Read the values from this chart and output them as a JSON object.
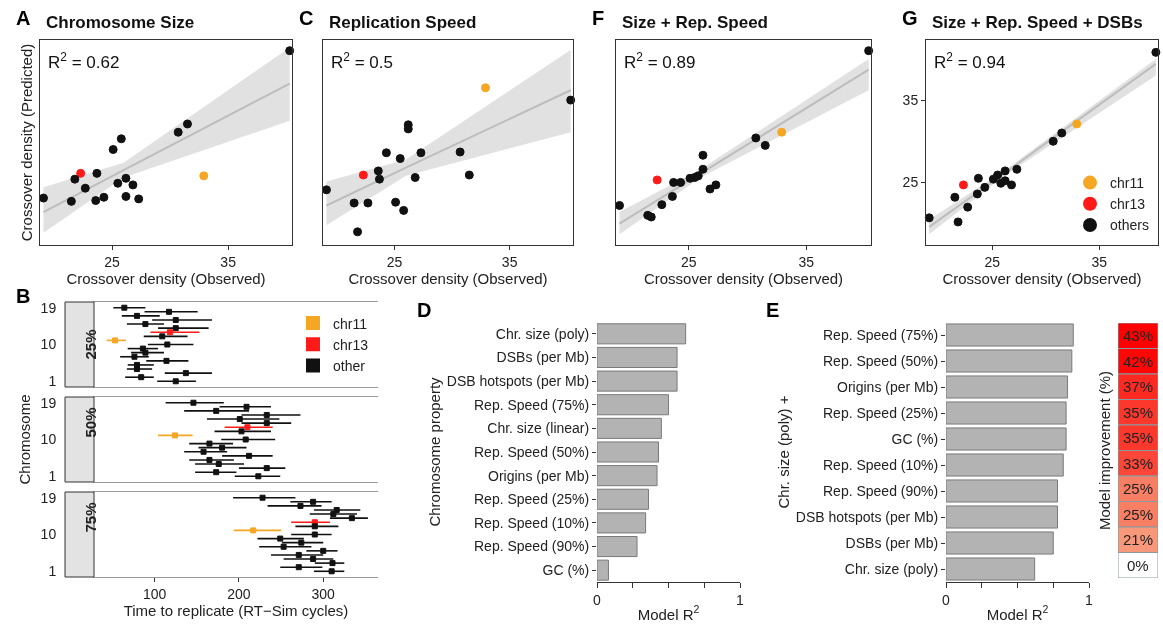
{
  "chart_data": [
    {
      "type": "scatter",
      "title": "Chromosome Size",
      "xlabel": "Crossover density (Observed)",
      "ylabel": "Crossover density (Predicted)",
      "annotations": [
        "A",
        "R$^{2}$ = 0.62"
      ],
      "xlim": [
        18.8,
        40.5
      ],
      "xticks": [
        25,
        35
      ],
      "ylim": [
        17.4,
        42.3
      ],
      "yticks": [
        25,
        35
      ],
      "tick_labels": "x",
      "series": [
        {
          "type": "line",
          "color": "#bdbdbd",
          "x": [
            19.1,
            26,
            40.3
          ],
          "values": [
            21.4,
            26.5,
            37.0
          ],
          "lower": [
            18.9,
            25.6,
            32.5
          ],
          "upper": [
            24.4,
            27.4,
            41.4
          ]
        },
        {
          "color": "#f5a623",
          "marker": "circle",
          "x": [
            32.9
          ],
          "values": [
            25.8
          ]
        },
        {
          "color": "#ff1a1a",
          "marker": "circle",
          "x": [
            22.3
          ],
          "values": [
            26.1
          ]
        },
        {
          "color": "#111111",
          "marker": "circle",
          "x": [
            19.1,
            21.5,
            21.8,
            22.7,
            23.6,
            23.7,
            24.3,
            25.1,
            25.5,
            25.8,
            26.2,
            26.2,
            26.8,
            27.3,
            30.7,
            31.5,
            40.3
          ],
          "values": [
            23.1,
            22.7,
            25.4,
            24.3,
            22.8,
            26.1,
            23.2,
            29.0,
            24.9,
            30.3,
            25.5,
            23.3,
            24.7,
            23.0,
            31.1,
            32.1,
            41.0
          ]
        }
      ]
    },
    {
      "type": "scatter",
      "title": "Replication Speed",
      "xlabel": "Crossover density (Observed)",
      "annotations": [
        "C",
        "R$^{2}$ = 0.5"
      ],
      "xlim": [
        18.8,
        40.5
      ],
      "xticks": [
        25,
        35
      ],
      "ylim": [
        17.4,
        42.3
      ],
      "yticks": [
        25,
        35
      ],
      "tick_labels": "x",
      "series": [
        {
          "type": "line",
          "color": "#bdbdbd",
          "x": [
            19.1,
            26,
            40.3
          ],
          "values": [
            22.2,
            26.8,
            36.2
          ],
          "lower": [
            19.8,
            25.8,
            31.1
          ],
          "upper": [
            25.1,
            27.8,
            41.1
          ]
        },
        {
          "color": "#f5a623",
          "marker": "circle",
          "x": [
            32.9
          ],
          "values": [
            36.5
          ]
        },
        {
          "color": "#ff1a1a",
          "marker": "circle",
          "x": [
            22.3
          ],
          "values": [
            25.9
          ]
        },
        {
          "color": "#111111",
          "marker": "circle",
          "x": [
            19.1,
            21.5,
            21.8,
            22.7,
            23.6,
            23.7,
            24.3,
            25.1,
            25.5,
            25.8,
            26.2,
            26.2,
            26.8,
            27.3,
            30.7,
            31.5,
            40.3
          ],
          "values": [
            24.1,
            22.5,
            19.0,
            22.5,
            26.4,
            25.4,
            28.6,
            22.6,
            27.9,
            21.6,
            32.0,
            31.5,
            25.6,
            28.6,
            28.7,
            25.9,
            35.0
          ]
        }
      ]
    },
    {
      "type": "scatter",
      "title": "Size + Rep. Speed",
      "xlabel": "Crossover density (Observed)",
      "annotations": [
        "F",
        "R$^{2}$ = 0.89"
      ],
      "xlim": [
        18.8,
        40.5
      ],
      "xticks": [
        25,
        35
      ],
      "ylim": [
        17.4,
        42.3
      ],
      "yticks": [
        25,
        35
      ],
      "tick_labels": "x",
      "series": [
        {
          "type": "line",
          "color": "#bdbdbd",
          "x": [
            19.1,
            26,
            40.3
          ],
          "values": [
            20.0,
            26.1,
            38.7
          ],
          "lower": [
            18.7,
            25.6,
            36.2
          ],
          "upper": [
            21.4,
            26.6,
            40.0
          ]
        },
        {
          "color": "#f5a623",
          "marker": "circle",
          "x": [
            32.9
          ],
          "values": [
            31.1
          ]
        },
        {
          "color": "#ff1a1a",
          "marker": "circle",
          "x": [
            22.3
          ],
          "values": [
            25.3
          ]
        },
        {
          "color": "#111111",
          "marker": "circle",
          "x": [
            19.1,
            21.5,
            21.8,
            22.7,
            23.6,
            23.7,
            24.3,
            25.1,
            25.5,
            25.8,
            26.2,
            26.2,
            26.8,
            27.3,
            30.7,
            31.5,
            40.3
          ],
          "values": [
            22.2,
            21.0,
            20.8,
            22.3,
            23.3,
            25.0,
            25.0,
            25.5,
            25.6,
            25.8,
            26.6,
            28.3,
            24.2,
            24.7,
            30.4,
            29.5,
            41.0
          ]
        }
      ]
    },
    {
      "type": "scatter",
      "title": "Size + Rep. Speed + DSBs",
      "xlabel": "Crossover density (Observed)",
      "annotations": [
        "G",
        "R$^{2}$ = 0.94"
      ],
      "xlim": [
        18.8,
        40.5
      ],
      "xticks": [
        25,
        35
      ],
      "ylim": [
        17.4,
        42.3
      ],
      "yticks": [
        25,
        35
      ],
      "legend": "bottom right",
      "series": [
        {
          "type": "line",
          "color": "#bdbdbd",
          "x": [
            19.1,
            26,
            40.3
          ],
          "values": [
            19.6,
            26.0,
            39.4
          ],
          "lower": [
            18.7,
            25.7,
            38.0
          ],
          "upper": [
            20.5,
            26.3,
            40.0
          ]
        },
        {
          "name": "chr11",
          "color": "#f5a623",
          "marker": "circle",
          "x": [
            32.9
          ],
          "values": [
            32.1
          ]
        },
        {
          "name": "chr13",
          "color": "#ff1a1a",
          "marker": "circle",
          "x": [
            22.3
          ],
          "values": [
            24.7
          ]
        },
        {
          "name": "others",
          "color": "#111111",
          "marker": "circle",
          "x": [
            19.1,
            21.5,
            21.8,
            22.7,
            23.6,
            23.7,
            24.3,
            25.1,
            25.5,
            25.8,
            26.2,
            26.2,
            26.8,
            27.3,
            30.7,
            31.5,
            40.3
          ],
          "values": [
            20.7,
            23.2,
            20.2,
            22.0,
            23.6,
            25.5,
            24.4,
            25.4,
            25.9,
            24.9,
            26.4,
            25.2,
            24.7,
            26.6,
            30.0,
            31.0,
            40.8
          ]
        }
      ]
    },
    {
      "type": "scatter",
      "title": "25%",
      "annotations": [
        "B"
      ],
      "xlim": [
        28,
        365
      ],
      "xticks": [
        100,
        200,
        300
      ],
      "ylim": [
        -0.4,
        20.4
      ],
      "yticks": [
        1,
        10,
        19
      ],
      "tick_labels": "y",
      "legend": "right",
      "marker": "square",
      "series": [
        {
          "name": "chr11",
          "color": "#f5a623",
          "x": [
            53
          ],
          "values": [
            11
          ],
          "xerrors": [
            [
              43,
              66
            ]
          ]
        },
        {
          "name": "chr13",
          "color": "#ff1a1a",
          "x": [
            118
          ],
          "values": [
            13
          ],
          "xerrors": [
            [
              95,
              153
            ]
          ]
        },
        {
          "name": "other",
          "color": "#111111",
          "x": [
            64,
            117,
            79,
            125,
            89,
            125,
            109,
            115,
            86,
            89,
            76,
            114,
            79,
            79,
            137,
            84,
            125
          ],
          "values": [
            19,
            18,
            17,
            16,
            15,
            14,
            12,
            10,
            9,
            8,
            7,
            6,
            5,
            4,
            3,
            2,
            1
          ],
          "xerrors": [
            [
              51,
              89
            ],
            [
              88,
              151
            ],
            [
              61,
              106
            ],
            [
              97,
              168
            ],
            [
              67,
              111
            ],
            [
              104,
              164
            ],
            [
              87,
              139
            ],
            [
              92,
              146
            ],
            [
              68,
              104
            ],
            [
              72,
              111
            ],
            [
              59,
              93
            ],
            [
              90,
              140
            ],
            [
              68,
              99
            ],
            [
              67,
              97
            ],
            [
              112,
              168
            ],
            [
              65,
              99
            ],
            [
              103,
              149
            ]
          ]
        }
      ]
    },
    {
      "type": "scatter",
      "title": "50%",
      "ylabel": "Chromosome",
      "xlim": [
        28,
        365
      ],
      "xticks": [
        100,
        200,
        300
      ],
      "ylim": [
        -0.4,
        20.4
      ],
      "yticks": [
        1,
        10,
        19
      ],
      "tick_labels": "y",
      "marker": "square",
      "series": [
        {
          "color": "#f5a623",
          "x": [
            124
          ],
          "values": [
            11
          ],
          "xerrors": [
            [
              104,
              145
            ]
          ]
        },
        {
          "color": "#ff1a1a",
          "x": [
            210
          ],
          "values": [
            13
          ],
          "xerrors": [
            [
              183,
              240
            ]
          ]
        },
        {
          "color": "#111111",
          "x": [
            146,
            209,
            173,
            233,
            201,
            233,
            203,
            208,
            165,
            180,
            158,
            212,
            165,
            176,
            233,
            173,
            223
          ],
          "values": [
            19,
            18,
            17,
            16,
            15,
            14,
            12,
            10,
            9,
            8,
            7,
            6,
            5,
            4,
            3,
            2,
            1
          ],
          "xerrors": [
            [
              113,
              182
            ],
            [
              177,
              238
            ],
            [
              135,
              212
            ],
            [
              203,
              273
            ],
            [
              162,
              248
            ],
            [
              203,
              262
            ],
            [
              171,
              238
            ],
            [
              179,
              243
            ],
            [
              141,
              193
            ],
            [
              152,
              209
            ],
            [
              135,
              186
            ],
            [
              180,
              240
            ],
            [
              141,
              194
            ],
            [
              148,
              206
            ],
            [
              200,
              255
            ],
            [
              148,
              197
            ],
            [
              195,
              249
            ]
          ]
        }
      ]
    },
    {
      "type": "scatter",
      "title": "75%",
      "xlabel": "Time to replicate (RT−Sim cycles)",
      "xlim": [
        28,
        365
      ],
      "xticks": [
        100,
        200,
        300
      ],
      "ylim": [
        -0.4,
        20.4
      ],
      "yticks": [
        1,
        10,
        19
      ],
      "marker": "square",
      "series": [
        {
          "color": "#f5a623",
          "x": [
            217
          ],
          "values": [
            11
          ],
          "xerrors": [
            [
              194,
              250
            ]
          ]
        },
        {
          "color": "#ff1a1a",
          "x": [
            290
          ],
          "values": [
            13
          ],
          "xerrors": [
            [
              262,
              308
            ]
          ]
        },
        {
          "color": "#111111",
          "x": [
            228,
            288,
            273,
            316,
            312,
            334,
            290,
            290,
            249,
            274,
            253,
            300,
            271,
            288,
            311,
            271,
            310
          ],
          "values": [
            19,
            18,
            17,
            16,
            15,
            14,
            12,
            10,
            9,
            8,
            7,
            6,
            5,
            4,
            3,
            2,
            1
          ],
          "xerrors": [
            [
              193,
              267
            ],
            [
              261,
              310
            ],
            [
              234,
              298
            ],
            [
              289,
              344
            ],
            [
              284,
              340
            ],
            [
              308,
              353
            ],
            [
              267,
              318
            ],
            [
              262,
              310
            ],
            [
              222,
              277
            ],
            [
              251,
              300
            ],
            [
              224,
              286
            ],
            [
              280,
              317
            ],
            [
              238,
              300
            ],
            [
              253,
              312
            ],
            [
              290,
              325
            ],
            [
              249,
              299
            ],
            [
              289,
              325
            ]
          ]
        }
      ]
    },
    {
      "type": "bar",
      "orientation": "horizontal",
      "annotations": [
        "D"
      ],
      "xlabel": "Model R$^{2}$",
      "ylabel": "Chromosome property",
      "categories": [
        "Chr. size (poly)",
        "DSBs (per Mb)",
        "DSB hotspots (per Mb)",
        "Rep. Speed (75%)",
        "Chr. size (linear)",
        "Rep. Speed (50%)",
        "Origins (per Mb)",
        "Rep. Speed (25%)",
        "Rep. Speed (10%)",
        "Rep. Speed (90%)",
        "GC (%)"
      ],
      "values": [
        0.62,
        0.56,
        0.56,
        0.5,
        0.45,
        0.43,
        0.42,
        0.36,
        0.34,
        0.28,
        0.08
      ],
      "color": "#b3b3b3",
      "xlim": [
        0,
        1
      ],
      "xticks": [
        0,
        {
          "value": 0.25,
          "label": null
        },
        {
          "value": 0.5,
          "label": null
        },
        {
          "value": 0.75,
          "label": null
        },
        1
      ]
    },
    {
      "type": "bar",
      "orientation": "horizontal",
      "annotations": [
        "E"
      ],
      "xlabel": "Model R$^{2}$",
      "ylabel": "Chr. size (poly) +",
      "categories": [
        "Rep. Speed (75%)",
        "Rep. Speed (50%)",
        "Origins (per Mb)",
        "Rep. Speed (25%)",
        "GC (%)",
        "Rep. Speed (10%)",
        "Rep. Speed (90%)",
        "DSB hotspots (per Mb)",
        "DSBs (per Mb)",
        "Chr. size (poly)"
      ],
      "values": [
        0.89,
        0.88,
        0.85,
        0.84,
        0.84,
        0.82,
        0.78,
        0.78,
        0.75,
        0.62
      ],
      "color": "#b3b3b3",
      "xlim": [
        0,
        1
      ],
      "xticks": [
        0,
        {
          "value": 0.25,
          "label": null
        },
        {
          "value": 0.5,
          "label": null
        },
        {
          "value": 0.75,
          "label": null
        },
        1
      ]
    },
    {
      "type": "heatmap",
      "ylabel": "Model improvement (%)",
      "categories": [
        null
      ],
      "y_categories": [
        null,
        null,
        null,
        null,
        null,
        null,
        null,
        null,
        null,
        null
      ],
      "cells": [
        [
          43
        ],
        [
          42
        ],
        [
          37
        ],
        [
          35
        ],
        [
          35
        ],
        [
          33
        ],
        [
          25
        ],
        [
          25
        ],
        [
          21
        ],
        [
          0
        ]
      ],
      "cell_labels": [
        [
          "43%"
        ],
        [
          "42%"
        ],
        [
          "37%"
        ],
        [
          "35%"
        ],
        [
          "35%"
        ],
        [
          "33%"
        ],
        [
          "25%"
        ],
        [
          "25%"
        ],
        [
          "21%"
        ],
        [
          "0%"
        ]
      ]
    }
  ]
}
